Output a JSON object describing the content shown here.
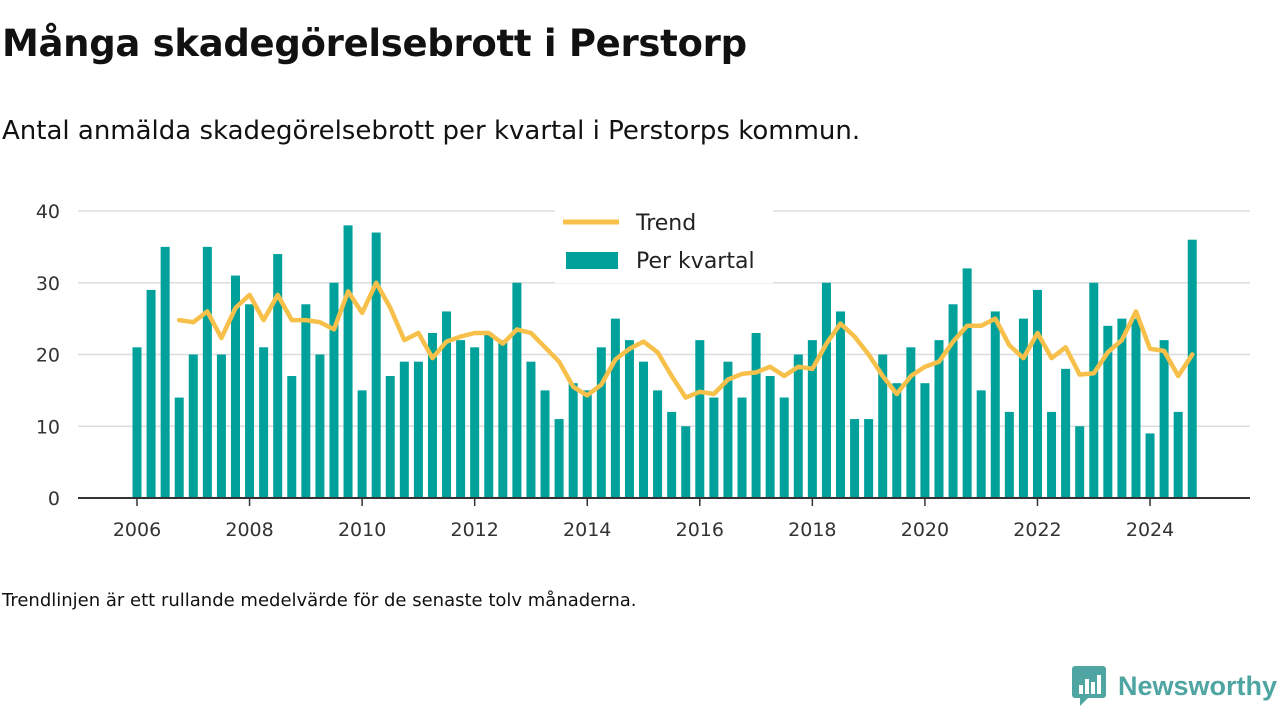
{
  "header": {
    "title": "Många skadegörelsebrott i Perstorp",
    "subtitle": "Antal anmälda skadegörelsebrott per kvartal i Perstorps kommun."
  },
  "footer": {
    "note": "Trendlinjen är ett rullande medelvärde för de senaste tolv månaderna.",
    "brand": "Newsworthy"
  },
  "colors": {
    "bar": "#00a19a",
    "trend": "#f7c04a",
    "grid": "#dddddd",
    "axis": "#333333",
    "brand": "#4fa5a2"
  },
  "icons": {
    "logo": "bar-chart-speech-bubble-icon"
  },
  "chart_data": {
    "type": "bar",
    "start": [
      2006,
      1
    ],
    "ylim": [
      0,
      40
    ],
    "yticks": [
      0,
      10,
      20,
      30,
      40
    ],
    "xticks": [
      "2006",
      "2008",
      "2010",
      "2012",
      "2014",
      "2016",
      "2018",
      "2020",
      "2022",
      "2024"
    ],
    "grid": true,
    "legend_position": "top-center",
    "series": [
      {
        "name": "Per kvartal",
        "kind": "bar",
        "values": [
          21,
          29,
          35,
          14,
          20,
          35,
          20,
          31,
          27,
          21,
          34,
          17,
          27,
          20,
          30,
          38,
          15,
          37,
          17,
          19,
          19,
          23,
          26,
          22,
          21,
          23,
          22,
          30,
          19,
          15,
          11,
          16,
          15,
          21,
          25,
          22,
          19,
          15,
          12,
          10,
          22,
          14,
          19,
          14,
          23,
          17,
          14,
          20,
          22,
          30,
          26,
          11,
          11,
          20,
          16,
          21,
          16,
          22,
          27,
          32,
          15,
          26,
          12,
          25,
          29,
          12,
          18,
          10,
          30,
          24,
          25,
          25,
          9,
          22,
          12,
          36
        ]
      },
      {
        "name": "Trend",
        "kind": "line",
        "values": [
          null,
          null,
          null,
          24.8,
          24.5,
          26.0,
          22.3,
          26.5,
          28.3,
          24.8,
          28.3,
          24.8,
          24.8,
          24.5,
          23.5,
          28.8,
          25.8,
          30.0,
          26.5,
          22.0,
          23.0,
          19.5,
          21.8,
          22.5,
          23.0,
          23.0,
          21.5,
          23.5,
          23.0,
          21.0,
          19.0,
          15.5,
          14.3,
          15.8,
          19.3,
          20.8,
          21.8,
          20.3,
          17.0,
          14.0,
          14.8,
          14.5,
          16.5,
          17.3,
          17.5,
          18.3,
          17.0,
          18.3,
          18.0,
          21.5,
          24.3,
          22.5,
          20.0,
          17.0,
          14.5,
          17.0,
          18.3,
          19.0,
          21.8,
          24.0,
          24.0,
          25.0,
          21.3,
          19.5,
          23.0,
          19.5,
          21.0,
          17.2,
          17.4,
          20.3,
          22.0,
          26.0,
          20.8,
          20.5,
          17.0,
          20.0
        ]
      }
    ]
  }
}
